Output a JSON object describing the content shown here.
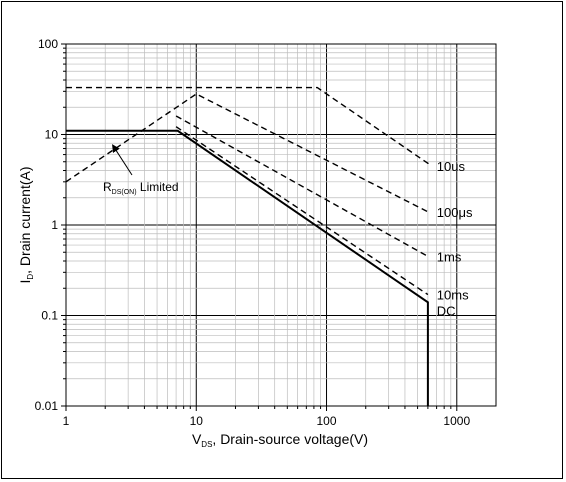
{
  "chart_data": {
    "type": "line",
    "title": "",
    "x_scale": "log",
    "y_scale": "log",
    "xlim": [
      1,
      2000
    ],
    "ylim": [
      0.01,
      100
    ],
    "grid": true,
    "x_ticks": [
      {
        "value": 1,
        "label": "1"
      },
      {
        "value": 10,
        "label": "10"
      },
      {
        "value": 100,
        "label": "100"
      },
      {
        "value": 1000,
        "label": "1000"
      }
    ],
    "y_ticks": [
      {
        "value": 0.01,
        "label": "0.01"
      },
      {
        "value": 0.1,
        "label": "0.1"
      },
      {
        "value": 1,
        "label": "1"
      },
      {
        "value": 10,
        "label": "10"
      },
      {
        "value": 100,
        "label": "100"
      }
    ],
    "xlabel": {
      "main": "V",
      "sub": "DS",
      "rest": ", Drain-source voltage(V)"
    },
    "ylabel": {
      "main": "I",
      "sub": "D",
      "rest": ", Drain current(A)"
    },
    "series": [
      {
        "label": "10us",
        "style": "dashed",
        "points": [
          [
            1,
            33
          ],
          [
            85,
            33
          ],
          [
            600,
            4.8
          ],
          [
            600,
            4.5
          ]
        ]
      },
      {
        "label": "100μs",
        "style": "dashed",
        "points": [
          [
            1,
            3.0
          ],
          [
            10,
            28
          ],
          [
            600,
            1.4
          ]
        ]
      },
      {
        "label": "1ms",
        "style": "dashed",
        "points": [
          [
            7,
            16
          ],
          [
            600,
            0.45
          ]
        ]
      },
      {
        "label": "10ms",
        "style": "dashed",
        "points": [
          [
            7,
            12.2
          ],
          [
            600,
            0.17
          ]
        ]
      },
      {
        "label": "DC",
        "style": "solid",
        "points": [
          [
            1,
            11
          ],
          [
            7.2,
            11
          ],
          [
            600,
            0.14
          ],
          [
            600,
            0.01
          ]
        ]
      }
    ],
    "annotation": {
      "main": "R",
      "sub": "DS(ON)",
      "rest": " Limited",
      "arrow_to": [
        2.3,
        7.5
      ]
    }
  }
}
